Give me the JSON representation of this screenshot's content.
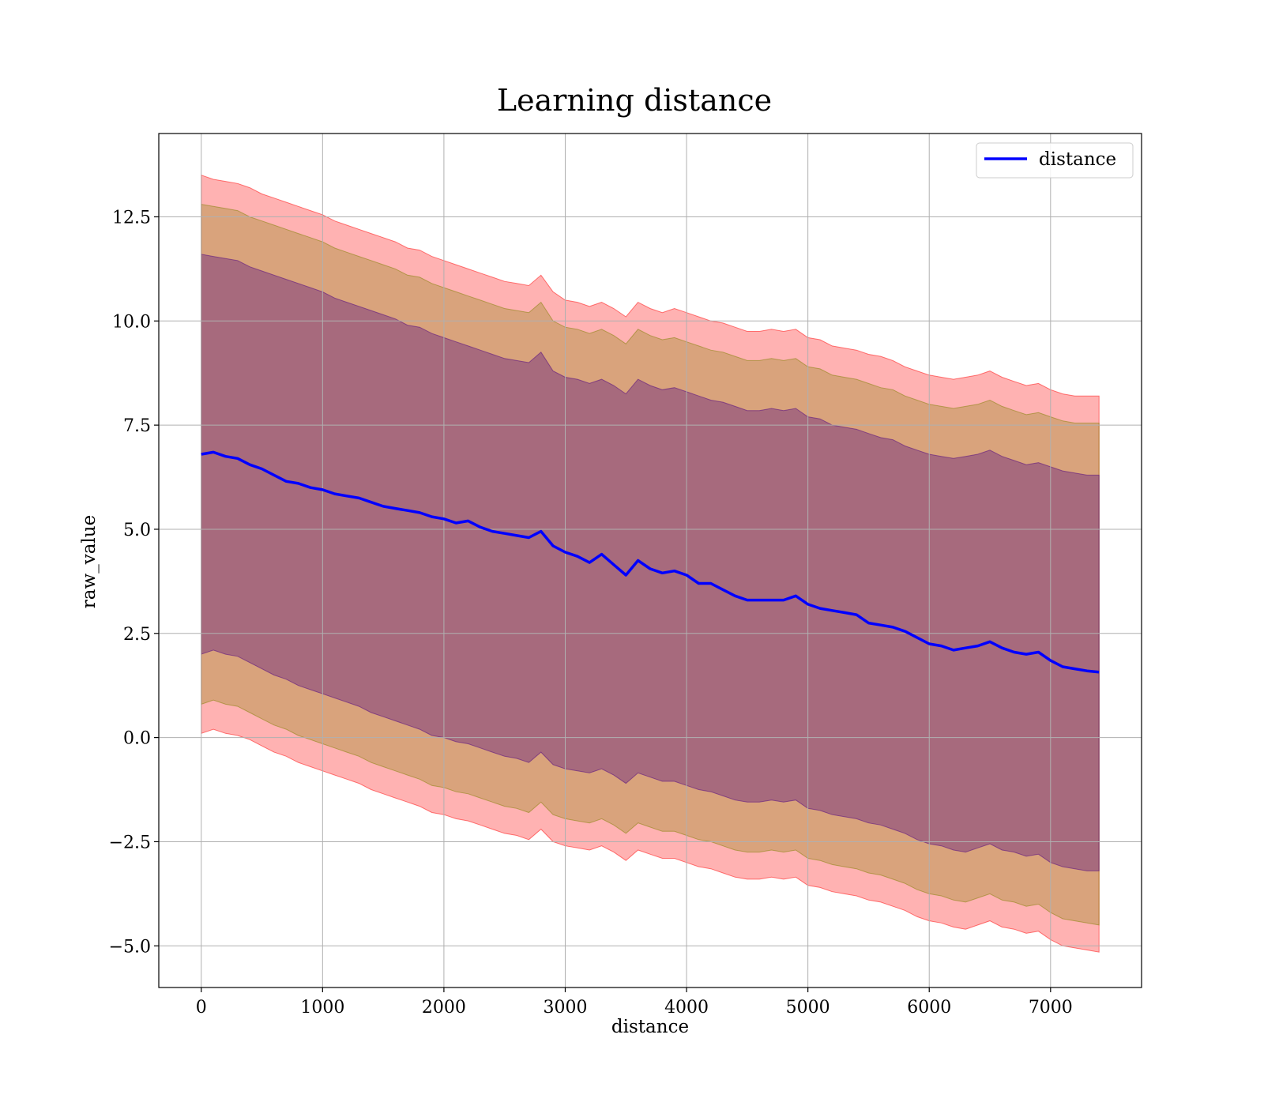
{
  "chart_data": {
    "type": "line",
    "title": "Learning distance",
    "xlabel": "distance",
    "ylabel": "raw_value",
    "xlim": [
      -350,
      7750
    ],
    "ylim": [
      -6.0,
      14.5
    ],
    "x_ticks": [
      0,
      1000,
      2000,
      3000,
      4000,
      5000,
      6000,
      7000
    ],
    "x_tick_labels": [
      "0",
      "1000",
      "2000",
      "3000",
      "4000",
      "5000",
      "6000",
      "7000"
    ],
    "y_ticks": [
      -5.0,
      -2.5,
      0.0,
      2.5,
      5.0,
      7.5,
      10.0,
      12.5
    ],
    "y_tick_labels": [
      "−5.0",
      "−2.5",
      "0.0",
      "2.5",
      "5.0",
      "7.5",
      "10.0",
      "12.5"
    ],
    "grid": true,
    "legend_position": "top-right",
    "series": [
      {
        "name": "distance",
        "color": "#0000ff",
        "x": [
          0,
          100,
          200,
          300,
          400,
          500,
          600,
          700,
          800,
          900,
          1000,
          1100,
          1200,
          1300,
          1400,
          1500,
          1600,
          1700,
          1800,
          1900,
          2000,
          2100,
          2200,
          2300,
          2400,
          2500,
          2600,
          2700,
          2800,
          2900,
          3000,
          3100,
          3200,
          3300,
          3400,
          3500,
          3600,
          3700,
          3800,
          3900,
          4000,
          4100,
          4200,
          4300,
          4400,
          4500,
          4600,
          4700,
          4800,
          4900,
          5000,
          5100,
          5200,
          5300,
          5400,
          5500,
          5600,
          5700,
          5800,
          5900,
          6000,
          6100,
          6200,
          6300,
          6400,
          6500,
          6600,
          6700,
          6800,
          6900,
          7000,
          7100,
          7200,
          7300,
          7400
        ],
        "values": [
          6.8,
          6.85,
          6.75,
          6.7,
          6.55,
          6.45,
          6.3,
          6.15,
          6.1,
          6.0,
          5.95,
          5.85,
          5.8,
          5.75,
          5.65,
          5.55,
          5.5,
          5.45,
          5.4,
          5.3,
          5.25,
          5.15,
          5.2,
          5.05,
          4.95,
          4.9,
          4.85,
          4.8,
          4.95,
          4.6,
          4.45,
          4.35,
          4.2,
          4.4,
          4.15,
          3.9,
          4.25,
          4.05,
          3.95,
          4.0,
          3.9,
          3.7,
          3.7,
          3.55,
          3.4,
          3.3,
          3.3,
          3.3,
          3.3,
          3.4,
          3.2,
          3.1,
          3.05,
          3.0,
          2.95,
          2.75,
          2.7,
          2.65,
          2.55,
          2.4,
          2.25,
          2.2,
          2.1,
          2.15,
          2.2,
          2.3,
          2.15,
          2.05,
          2.0,
          2.05,
          1.85,
          1.7,
          1.65,
          1.6,
          1.57
        ]
      }
    ],
    "bands": [
      {
        "color": "#ff0000",
        "opacity": 0.3,
        "x": [
          0,
          100,
          200,
          300,
          400,
          500,
          600,
          700,
          800,
          900,
          1000,
          1100,
          1200,
          1300,
          1400,
          1500,
          1600,
          1700,
          1800,
          1900,
          2000,
          2100,
          2200,
          2300,
          2400,
          2500,
          2600,
          2700,
          2800,
          2900,
          3000,
          3100,
          3200,
          3300,
          3400,
          3500,
          3600,
          3700,
          3800,
          3900,
          4000,
          4100,
          4200,
          4300,
          4400,
          4500,
          4600,
          4700,
          4800,
          4900,
          5000,
          5100,
          5200,
          5300,
          5400,
          5500,
          5600,
          5700,
          5800,
          5900,
          6000,
          6100,
          6200,
          6300,
          6400,
          6500,
          6600,
          6700,
          6800,
          6900,
          7000,
          7100,
          7200,
          7300,
          7400
        ],
        "upper": [
          13.5,
          13.4,
          13.35,
          13.3,
          13.2,
          13.05,
          12.95,
          12.85,
          12.75,
          12.65,
          12.55,
          12.4,
          12.3,
          12.2,
          12.1,
          12.0,
          11.9,
          11.75,
          11.7,
          11.55,
          11.45,
          11.35,
          11.25,
          11.15,
          11.05,
          10.95,
          10.9,
          10.85,
          11.1,
          10.7,
          10.5,
          10.45,
          10.35,
          10.45,
          10.3,
          10.1,
          10.45,
          10.3,
          10.2,
          10.3,
          10.2,
          10.1,
          10.0,
          9.95,
          9.85,
          9.75,
          9.75,
          9.8,
          9.75,
          9.8,
          9.6,
          9.55,
          9.4,
          9.35,
          9.3,
          9.2,
          9.15,
          9.05,
          8.9,
          8.8,
          8.7,
          8.65,
          8.6,
          8.65,
          8.7,
          8.8,
          8.65,
          8.55,
          8.45,
          8.5,
          8.35,
          8.25,
          8.2,
          8.2,
          8.2
        ],
        "lower": [
          0.1,
          0.2,
          0.1,
          0.05,
          -0.05,
          -0.2,
          -0.35,
          -0.45,
          -0.6,
          -0.7,
          -0.8,
          -0.9,
          -1.0,
          -1.1,
          -1.25,
          -1.35,
          -1.45,
          -1.55,
          -1.65,
          -1.8,
          -1.85,
          -1.95,
          -2.0,
          -2.1,
          -2.2,
          -2.3,
          -2.35,
          -2.45,
          -2.2,
          -2.5,
          -2.6,
          -2.65,
          -2.7,
          -2.6,
          -2.75,
          -2.95,
          -2.7,
          -2.8,
          -2.9,
          -2.9,
          -3.0,
          -3.1,
          -3.15,
          -3.25,
          -3.35,
          -3.4,
          -3.4,
          -3.35,
          -3.4,
          -3.35,
          -3.55,
          -3.6,
          -3.7,
          -3.75,
          -3.8,
          -3.9,
          -3.95,
          -4.05,
          -4.15,
          -4.3,
          -4.4,
          -4.45,
          -4.55,
          -4.6,
          -4.5,
          -4.4,
          -4.55,
          -4.6,
          -4.7,
          -4.65,
          -4.85,
          -5.0,
          -5.05,
          -5.1,
          -5.15
        ]
      },
      {
        "color": "#808000",
        "opacity": 0.3,
        "x": [
          0,
          100,
          200,
          300,
          400,
          500,
          600,
          700,
          800,
          900,
          1000,
          1100,
          1200,
          1300,
          1400,
          1500,
          1600,
          1700,
          1800,
          1900,
          2000,
          2100,
          2200,
          2300,
          2400,
          2500,
          2600,
          2700,
          2800,
          2900,
          3000,
          3100,
          3200,
          3300,
          3400,
          3500,
          3600,
          3700,
          3800,
          3900,
          4000,
          4100,
          4200,
          4300,
          4400,
          4500,
          4600,
          4700,
          4800,
          4900,
          5000,
          5100,
          5200,
          5300,
          5400,
          5500,
          5600,
          5700,
          5800,
          5900,
          6000,
          6100,
          6200,
          6300,
          6400,
          6500,
          6600,
          6700,
          6800,
          6900,
          7000,
          7100,
          7200,
          7300,
          7400
        ],
        "upper": [
          12.8,
          12.75,
          12.7,
          12.65,
          12.5,
          12.4,
          12.3,
          12.2,
          12.1,
          12.0,
          11.9,
          11.75,
          11.65,
          11.55,
          11.45,
          11.35,
          11.25,
          11.1,
          11.05,
          10.9,
          10.8,
          10.7,
          10.6,
          10.5,
          10.4,
          10.3,
          10.25,
          10.2,
          10.45,
          10.0,
          9.85,
          9.8,
          9.7,
          9.8,
          9.65,
          9.45,
          9.8,
          9.65,
          9.55,
          9.6,
          9.5,
          9.4,
          9.3,
          9.25,
          9.15,
          9.05,
          9.05,
          9.1,
          9.05,
          9.1,
          8.9,
          8.85,
          8.7,
          8.65,
          8.6,
          8.5,
          8.4,
          8.35,
          8.2,
          8.1,
          8.0,
          7.95,
          7.9,
          7.95,
          8.0,
          8.1,
          7.95,
          7.85,
          7.75,
          7.8,
          7.7,
          7.6,
          7.55,
          7.55,
          7.55
        ],
        "lower": [
          0.8,
          0.9,
          0.8,
          0.75,
          0.6,
          0.45,
          0.3,
          0.2,
          0.05,
          -0.05,
          -0.15,
          -0.25,
          -0.35,
          -0.45,
          -0.6,
          -0.7,
          -0.8,
          -0.9,
          -1.0,
          -1.15,
          -1.2,
          -1.3,
          -1.35,
          -1.45,
          -1.55,
          -1.65,
          -1.7,
          -1.8,
          -1.55,
          -1.85,
          -1.95,
          -2.0,
          -2.05,
          -1.95,
          -2.1,
          -2.3,
          -2.05,
          -2.15,
          -2.25,
          -2.25,
          -2.35,
          -2.45,
          -2.5,
          -2.6,
          -2.7,
          -2.75,
          -2.75,
          -2.7,
          -2.75,
          -2.7,
          -2.9,
          -2.95,
          -3.05,
          -3.1,
          -3.15,
          -3.25,
          -3.3,
          -3.4,
          -3.5,
          -3.65,
          -3.75,
          -3.8,
          -3.9,
          -3.95,
          -3.85,
          -3.75,
          -3.9,
          -3.95,
          -4.05,
          -4.0,
          -4.2,
          -4.35,
          -4.4,
          -4.45,
          -4.5
        ]
      },
      {
        "color": "#4b0082",
        "opacity": 0.35,
        "x": [
          0,
          100,
          200,
          300,
          400,
          500,
          600,
          700,
          800,
          900,
          1000,
          1100,
          1200,
          1300,
          1400,
          1500,
          1600,
          1700,
          1800,
          1900,
          2000,
          2100,
          2200,
          2300,
          2400,
          2500,
          2600,
          2700,
          2800,
          2900,
          3000,
          3100,
          3200,
          3300,
          3400,
          3500,
          3600,
          3700,
          3800,
          3900,
          4000,
          4100,
          4200,
          4300,
          4400,
          4500,
          4600,
          4700,
          4800,
          4900,
          5000,
          5100,
          5200,
          5300,
          5400,
          5500,
          5600,
          5700,
          5800,
          5900,
          6000,
          6100,
          6200,
          6300,
          6400,
          6500,
          6600,
          6700,
          6800,
          6900,
          7000,
          7100,
          7200,
          7300,
          7400
        ],
        "upper": [
          11.6,
          11.55,
          11.5,
          11.45,
          11.3,
          11.2,
          11.1,
          11.0,
          10.9,
          10.8,
          10.7,
          10.55,
          10.45,
          10.35,
          10.25,
          10.15,
          10.05,
          9.9,
          9.85,
          9.7,
          9.6,
          9.5,
          9.4,
          9.3,
          9.2,
          9.1,
          9.05,
          9.0,
          9.25,
          8.8,
          8.65,
          8.6,
          8.5,
          8.6,
          8.45,
          8.25,
          8.6,
          8.45,
          8.35,
          8.4,
          8.3,
          8.2,
          8.1,
          8.05,
          7.95,
          7.85,
          7.85,
          7.9,
          7.85,
          7.9,
          7.7,
          7.65,
          7.5,
          7.45,
          7.4,
          7.3,
          7.2,
          7.15,
          7.0,
          6.9,
          6.8,
          6.75,
          6.7,
          6.75,
          6.8,
          6.9,
          6.75,
          6.65,
          6.55,
          6.6,
          6.5,
          6.4,
          6.35,
          6.3,
          6.3
        ],
        "lower": [
          2.0,
          2.1,
          2.0,
          1.95,
          1.8,
          1.65,
          1.5,
          1.4,
          1.25,
          1.15,
          1.05,
          0.95,
          0.85,
          0.75,
          0.6,
          0.5,
          0.4,
          0.3,
          0.2,
          0.05,
          0.0,
          -0.1,
          -0.15,
          -0.25,
          -0.35,
          -0.45,
          -0.5,
          -0.6,
          -0.35,
          -0.65,
          -0.75,
          -0.8,
          -0.85,
          -0.75,
          -0.9,
          -1.1,
          -0.85,
          -0.95,
          -1.05,
          -1.05,
          -1.15,
          -1.25,
          -1.3,
          -1.4,
          -1.5,
          -1.55,
          -1.55,
          -1.5,
          -1.55,
          -1.5,
          -1.7,
          -1.75,
          -1.85,
          -1.9,
          -1.95,
          -2.05,
          -2.1,
          -2.2,
          -2.3,
          -2.45,
          -2.55,
          -2.6,
          -2.7,
          -2.75,
          -2.65,
          -2.55,
          -2.7,
          -2.75,
          -2.85,
          -2.8,
          -3.0,
          -3.1,
          -3.15,
          -3.2,
          -3.2
        ]
      }
    ]
  }
}
